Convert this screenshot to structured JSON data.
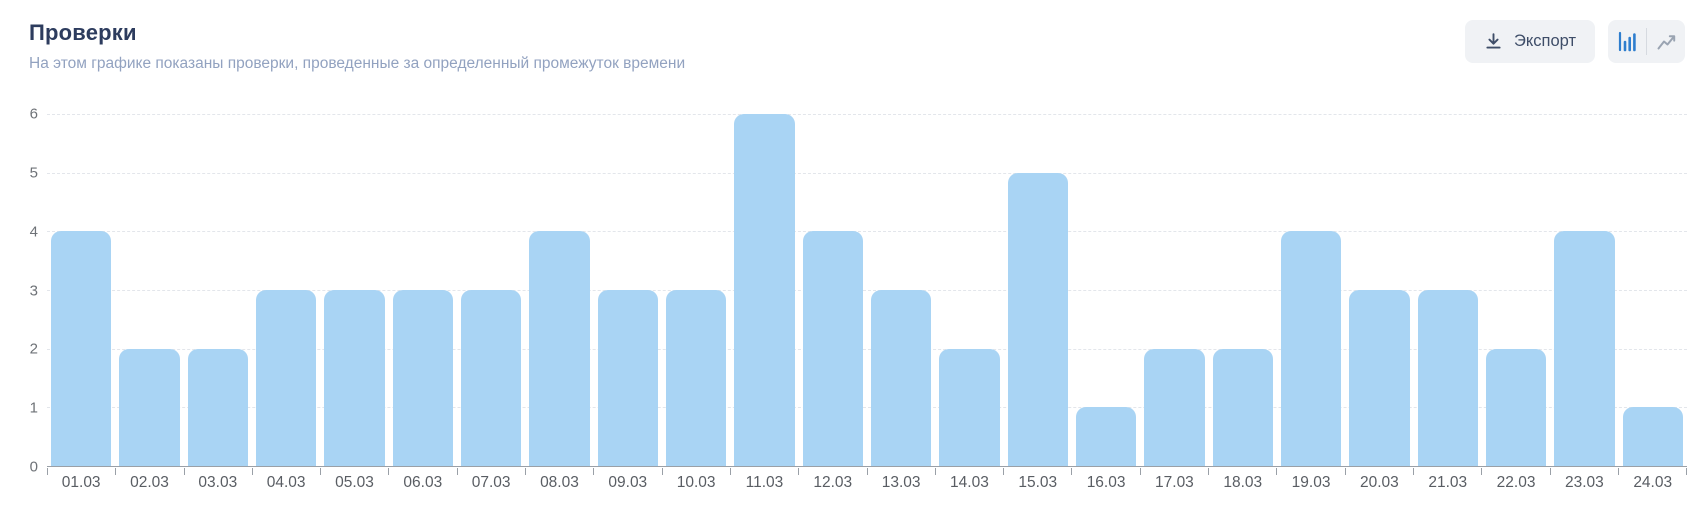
{
  "header": {
    "title": "Проверки",
    "subtitle": "На этом графике показаны проверки, проведенные за определенный промежуток времени"
  },
  "toolbar": {
    "export_label": "Экспорт",
    "export_icon": "download-icon",
    "chart_type_toggle": {
      "options": [
        {
          "icon": "bar-chart-icon",
          "active": true
        },
        {
          "icon": "line-chart-icon",
          "active": false
        }
      ],
      "active": "bar"
    }
  },
  "colors": {
    "bar_fill": "#a9d4f4",
    "title_text": "#2d3c5e",
    "subtitle_text": "#92a2c0",
    "axis_label": "#6e7277",
    "x_label": "#595d63",
    "gridline": "#e3e6eb",
    "axis_line": "#9aa0a7",
    "button_bg": "#f0f2f5",
    "button_text": "#3e4d68",
    "active_icon_blue": "#2e7ece",
    "inactive_icon_gray": "#9aa4b2"
  },
  "chart_data": {
    "type": "bar",
    "title": "Проверки",
    "categories": [
      "01.03",
      "02.03",
      "03.03",
      "04.03",
      "05.03",
      "06.03",
      "07.03",
      "08.03",
      "09.03",
      "10.03",
      "11.03",
      "12.03",
      "13.03",
      "14.03",
      "15.03",
      "16.03",
      "17.03",
      "18.03",
      "19.03",
      "20.03",
      "21.03",
      "22.03",
      "23.03",
      "24.03"
    ],
    "values": [
      4,
      2,
      2,
      3,
      3,
      3,
      3,
      4,
      3,
      3,
      6,
      4,
      3,
      2,
      5,
      1,
      2,
      2,
      4,
      3,
      3,
      2,
      4,
      1
    ],
    "xlabel": "",
    "ylabel": "",
    "ylim": [
      0,
      6
    ],
    "yticks": [
      0,
      1,
      2,
      3,
      4,
      5,
      6
    ],
    "grid": "horizontal-dashed",
    "legend": "none",
    "bar_color": "#a9d4f4"
  }
}
